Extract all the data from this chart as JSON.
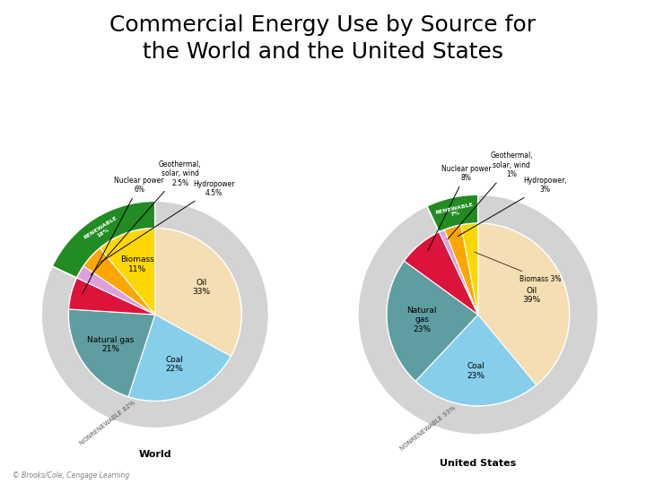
{
  "title": "Commercial Energy Use by Source for\nthe World and the United States",
  "title_fontsize": 18,
  "world": {
    "label": "World",
    "slices": [
      {
        "name": "Oil",
        "pct": 33,
        "color": "#F5DEB3",
        "label_in": true
      },
      {
        "name": "Coal",
        "pct": 22,
        "color": "#87CEEB",
        "label_in": true
      },
      {
        "name": "Natural gas",
        "pct": 21,
        "color": "#5F9EA0",
        "label_in": true
      },
      {
        "name": "Nuclear power",
        "pct": 6,
        "color": "#DC143C",
        "label_in": false
      },
      {
        "name": "Geothermal,\nsolar, wind",
        "pct": 2.5,
        "color": "#DDA0DD",
        "label_in": false
      },
      {
        "name": "Hydropower",
        "pct": 4.5,
        "color": "#FFA500",
        "label_in": false
      },
      {
        "name": "Biomass",
        "pct": 11,
        "color": "#FFD700",
        "label_in": true
      }
    ],
    "renewable_pct": 18,
    "nonrenewable_pct": 82,
    "nonrenewable_color": "#D3D3D3",
    "renewable_color": "#228B22"
  },
  "us": {
    "label": "United States",
    "slices": [
      {
        "name": "Oil",
        "pct": 39,
        "color": "#F5DEB3",
        "label_in": true
      },
      {
        "name": "Coal",
        "pct": 23,
        "color": "#87CEEB",
        "label_in": true
      },
      {
        "name": "Natural gas",
        "pct": 23,
        "color": "#5F9EA0",
        "label_in": true
      },
      {
        "name": "Nuclear power",
        "pct": 8,
        "color": "#DC143C",
        "label_in": false
      },
      {
        "name": "Geothermal,\nsolar, wind",
        "pct": 1,
        "color": "#DDA0DD",
        "label_in": false
      },
      {
        "name": "Hydropower",
        "pct": 3,
        "color": "#FFA500",
        "label_in": false
      },
      {
        "name": "Biomass",
        "pct": 3,
        "color": "#FFD700",
        "label_in": false
      }
    ],
    "renewable_pct": 7,
    "nonrenewable_pct": 93,
    "nonrenewable_color": "#D3D3D3",
    "renewable_color": "#228B22"
  },
  "bg_color": "#FFFFFF",
  "copyright": "© Brooks/Cole, Cengage Learning"
}
